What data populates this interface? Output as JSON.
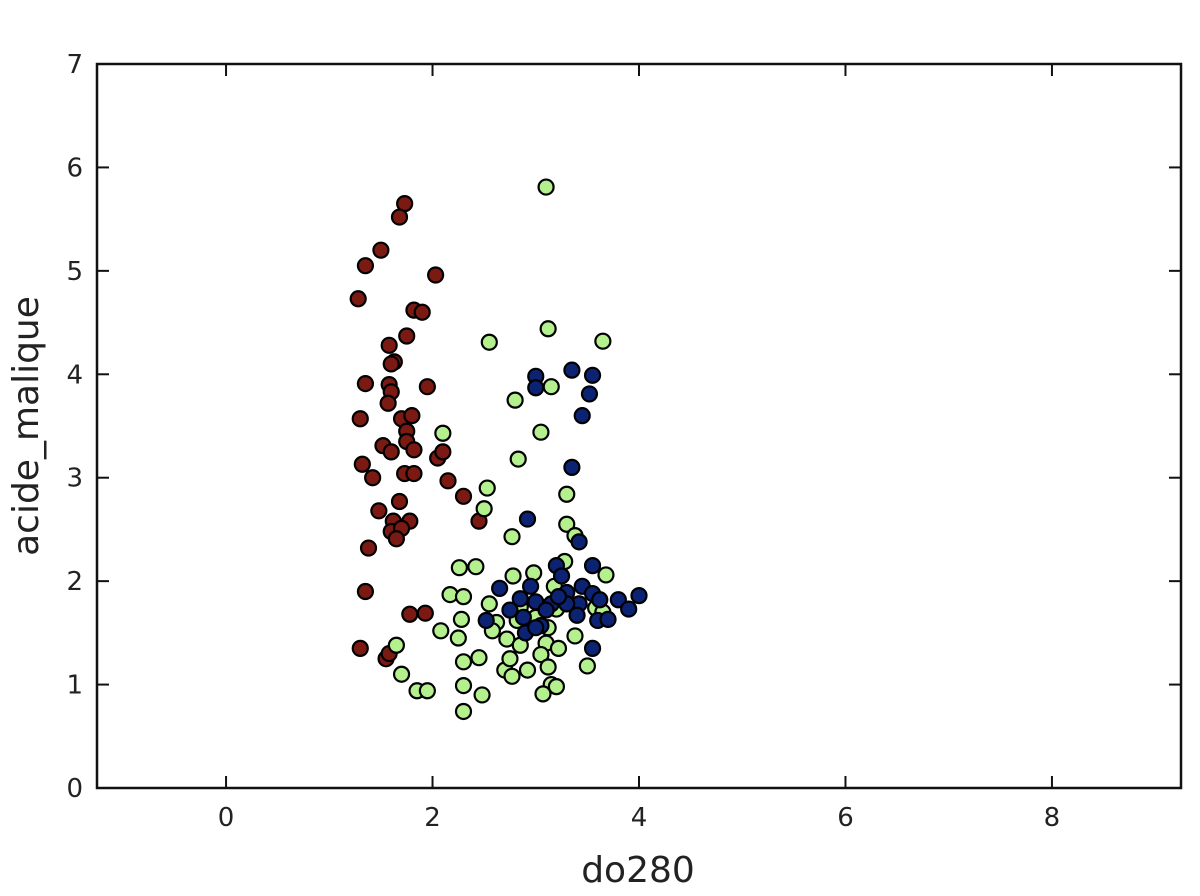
{
  "chart_data": {
    "type": "scatter",
    "title": "",
    "xlabel": "do280",
    "ylabel": "acide_malique",
    "xlim": [
      -1.25,
      9.25
    ],
    "ylim": [
      0,
      7
    ],
    "xticks": [
      0,
      2,
      4,
      6,
      8
    ],
    "yticks": [
      0,
      1,
      2,
      3,
      4,
      5,
      6,
      7
    ],
    "grid": false,
    "legend": "none",
    "series": [
      {
        "color": "#7a1a12",
        "points": [
          [
            1.73,
            5.65
          ],
          [
            1.68,
            5.52
          ],
          [
            1.5,
            5.2
          ],
          [
            1.35,
            5.05
          ],
          [
            2.03,
            4.96
          ],
          [
            1.28,
            4.73
          ],
          [
            1.82,
            4.62
          ],
          [
            1.9,
            4.6
          ],
          [
            1.75,
            4.37
          ],
          [
            1.58,
            4.28
          ],
          [
            1.63,
            4.12
          ],
          [
            1.6,
            4.1
          ],
          [
            1.35,
            3.91
          ],
          [
            1.58,
            3.9
          ],
          [
            1.6,
            3.83
          ],
          [
            1.95,
            3.88
          ],
          [
            1.57,
            3.72
          ],
          [
            1.3,
            3.57
          ],
          [
            1.7,
            3.57
          ],
          [
            1.8,
            3.6
          ],
          [
            1.75,
            3.45
          ],
          [
            1.52,
            3.31
          ],
          [
            1.6,
            3.25
          ],
          [
            1.75,
            3.35
          ],
          [
            1.82,
            3.27
          ],
          [
            2.05,
            3.19
          ],
          [
            2.1,
            3.25
          ],
          [
            1.32,
            3.13
          ],
          [
            1.42,
            3.0
          ],
          [
            1.73,
            3.04
          ],
          [
            1.82,
            3.04
          ],
          [
            2.15,
            2.97
          ],
          [
            2.3,
            2.82
          ],
          [
            1.68,
            2.77
          ],
          [
            1.48,
            2.68
          ],
          [
            1.62,
            2.58
          ],
          [
            1.78,
            2.58
          ],
          [
            1.6,
            2.48
          ],
          [
            1.7,
            2.51
          ],
          [
            1.65,
            2.41
          ],
          [
            1.38,
            2.32
          ],
          [
            2.45,
            2.58
          ],
          [
            1.35,
            1.9
          ],
          [
            1.78,
            1.68
          ],
          [
            1.93,
            1.69
          ],
          [
            1.3,
            1.35
          ],
          [
            1.55,
            1.25
          ],
          [
            1.58,
            1.3
          ]
        ]
      },
      {
        "color": "#b5f08e",
        "points": [
          [
            3.1,
            5.81
          ],
          [
            3.12,
            4.44
          ],
          [
            2.55,
            4.31
          ],
          [
            3.65,
            4.32
          ],
          [
            3.15,
            3.88
          ],
          [
            2.8,
            3.75
          ],
          [
            2.1,
            3.43
          ],
          [
            3.05,
            3.44
          ],
          [
            2.83,
            3.18
          ],
          [
            2.53,
            2.9
          ],
          [
            3.3,
            2.84
          ],
          [
            2.5,
            2.7
          ],
          [
            3.3,
            2.55
          ],
          [
            3.38,
            2.44
          ],
          [
            2.77,
            2.43
          ],
          [
            3.28,
            2.19
          ],
          [
            2.26,
            2.13
          ],
          [
            2.42,
            2.14
          ],
          [
            2.78,
            2.05
          ],
          [
            2.98,
            2.08
          ],
          [
            3.68,
            2.06
          ],
          [
            3.18,
            1.95
          ],
          [
            2.17,
            1.87
          ],
          [
            2.3,
            1.85
          ],
          [
            2.55,
            1.78
          ],
          [
            2.85,
            1.75
          ],
          [
            3.2,
            1.73
          ],
          [
            3.58,
            1.74
          ],
          [
            3.65,
            1.7
          ],
          [
            2.28,
            1.63
          ],
          [
            2.62,
            1.6
          ],
          [
            2.82,
            1.62
          ],
          [
            3.0,
            1.65
          ],
          [
            3.12,
            1.55
          ],
          [
            2.08,
            1.52
          ],
          [
            2.25,
            1.45
          ],
          [
            2.58,
            1.52
          ],
          [
            2.72,
            1.44
          ],
          [
            2.85,
            1.38
          ],
          [
            3.1,
            1.4
          ],
          [
            3.22,
            1.35
          ],
          [
            3.38,
            1.47
          ],
          [
            1.65,
            1.38
          ],
          [
            2.3,
            1.22
          ],
          [
            2.45,
            1.26
          ],
          [
            2.7,
            1.14
          ],
          [
            2.92,
            1.14
          ],
          [
            3.05,
            1.29
          ],
          [
            3.12,
            1.17
          ],
          [
            3.5,
            1.18
          ],
          [
            1.7,
            1.1
          ],
          [
            1.85,
            0.94
          ],
          [
            1.95,
            0.94
          ],
          [
            2.3,
            0.99
          ],
          [
            2.48,
            0.9
          ],
          [
            2.77,
            1.08
          ],
          [
            3.15,
            1.0
          ],
          [
            3.2,
            0.98
          ],
          [
            3.07,
            0.91
          ],
          [
            2.3,
            0.74
          ],
          [
            2.75,
            1.25
          ]
        ]
      },
      {
        "color": "#0c2374",
        "points": [
          [
            3.0,
            3.98
          ],
          [
            3.35,
            4.04
          ],
          [
            3.55,
            3.99
          ],
          [
            3.0,
            3.87
          ],
          [
            3.52,
            3.81
          ],
          [
            3.45,
            3.6
          ],
          [
            3.35,
            3.1
          ],
          [
            2.92,
            2.6
          ],
          [
            3.42,
            2.38
          ],
          [
            3.55,
            2.15
          ],
          [
            3.2,
            2.15
          ],
          [
            3.25,
            2.05
          ],
          [
            2.65,
            1.93
          ],
          [
            2.95,
            1.95
          ],
          [
            3.3,
            1.89
          ],
          [
            3.45,
            1.95
          ],
          [
            3.55,
            1.88
          ],
          [
            3.62,
            1.82
          ],
          [
            3.8,
            1.82
          ],
          [
            4.0,
            1.86
          ],
          [
            2.85,
            1.83
          ],
          [
            3.0,
            1.8
          ],
          [
            3.15,
            1.78
          ],
          [
            3.42,
            1.78
          ],
          [
            3.1,
            1.72
          ],
          [
            2.75,
            1.72
          ],
          [
            3.9,
            1.73
          ],
          [
            3.4,
            1.67
          ],
          [
            3.6,
            1.62
          ],
          [
            3.7,
            1.63
          ],
          [
            2.88,
            1.65
          ],
          [
            3.05,
            1.57
          ],
          [
            2.52,
            1.62
          ],
          [
            2.9,
            1.5
          ],
          [
            3.0,
            1.55
          ],
          [
            3.55,
            1.35
          ],
          [
            3.3,
            1.78
          ],
          [
            3.22,
            1.85
          ]
        ]
      }
    ]
  }
}
